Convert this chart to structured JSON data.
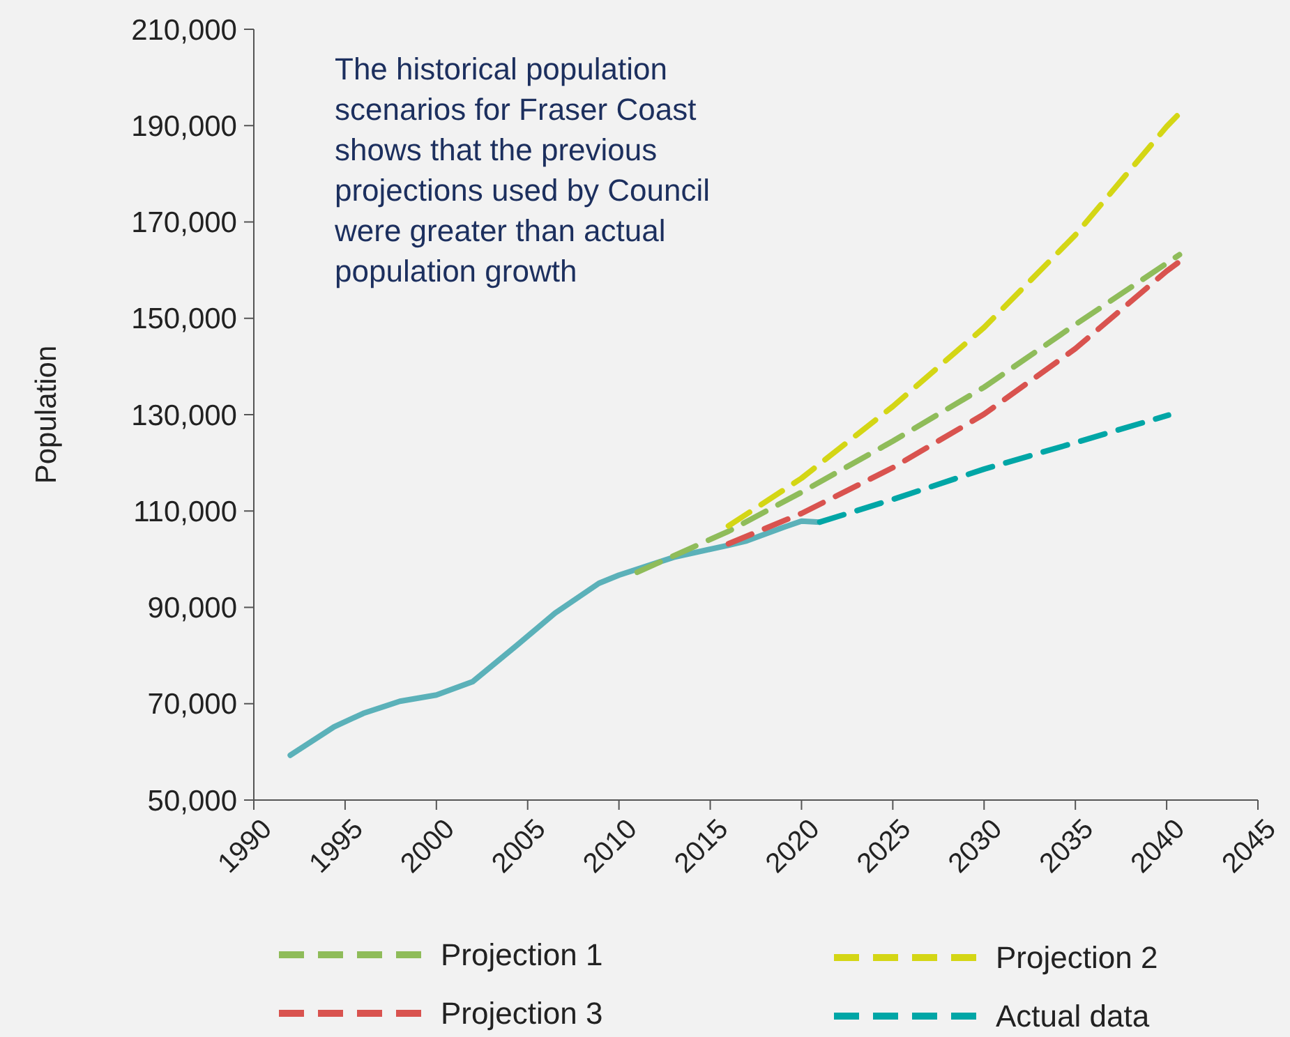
{
  "chart_data": {
    "type": "line",
    "ylabel": "Population",
    "xlim": [
      1990,
      2045
    ],
    "xticks": [
      1990,
      1995,
      2000,
      2005,
      2010,
      2015,
      2020,
      2025,
      2030,
      2035,
      2040,
      2045
    ],
    "ylim": [
      50000,
      210000
    ],
    "yticks": [
      {
        "value": 50000,
        "label": "50,000"
      },
      {
        "value": 70000,
        "label": "70,000"
      },
      {
        "value": 90000,
        "label": "90,000"
      },
      {
        "value": 110000,
        "label": "110,000"
      },
      {
        "value": 130000,
        "label": "130,000"
      },
      {
        "value": 150000,
        "label": "150,000"
      },
      {
        "value": 170000,
        "label": "170,000"
      },
      {
        "value": 190000,
        "label": "190,000"
      },
      {
        "value": 210000,
        "label": "210,000"
      }
    ],
    "grid": false,
    "legend": "bottom",
    "annotations": [
      "The historical population scenarios for Fraser Coast shows that the previous projections used by Council were greater than actual population growth"
    ],
    "series": [
      {
        "color": "#5bb1b9",
        "line_style": "solid",
        "x": [
          1992,
          1994.4,
          1996,
          1998,
          2000,
          2002,
          2004.4,
          2006.5,
          2008.9,
          2010,
          2013,
          2016,
          2017,
          2019,
          2020,
          2021
        ],
        "values": [
          59300,
          65200,
          68000,
          70500,
          71800,
          74600,
          82100,
          88800,
          95000,
          96700,
          100400,
          102900,
          103800,
          106600,
          107900,
          107700
        ]
      },
      {
        "name": "Projection 1",
        "color": "#8fbc5a",
        "line_style": "dashed",
        "x": [
          2011,
          2014,
          2016,
          2020,
          2025,
          2030,
          2035,
          2040.7
        ],
        "values": [
          97300,
          102400,
          105800,
          113900,
          124500,
          135700,
          148700,
          163200
        ]
      },
      {
        "name": "Projection 2",
        "color": "#d4d615",
        "line_style": "dashed",
        "x": [
          2016,
          2020,
          2025,
          2030,
          2035,
          2040,
          2041
        ],
        "values": [
          106900,
          116800,
          131700,
          148100,
          167300,
          189800,
          193700
        ]
      },
      {
        "name": "Projection 3",
        "color": "#d9534f",
        "line_style": "dashed",
        "x": [
          2016,
          2020,
          2025,
          2030,
          2035,
          2040,
          2041
        ],
        "values": [
          103200,
          109500,
          119000,
          130100,
          143700,
          159800,
          162600
        ]
      },
      {
        "name": "Actual data",
        "color": "#00a6a6",
        "line_style": "dashed",
        "x": [
          2021,
          2025,
          2030,
          2035,
          2040.1
        ],
        "values": [
          107700,
          112400,
          118700,
          124200,
          129900
        ]
      }
    ]
  }
}
